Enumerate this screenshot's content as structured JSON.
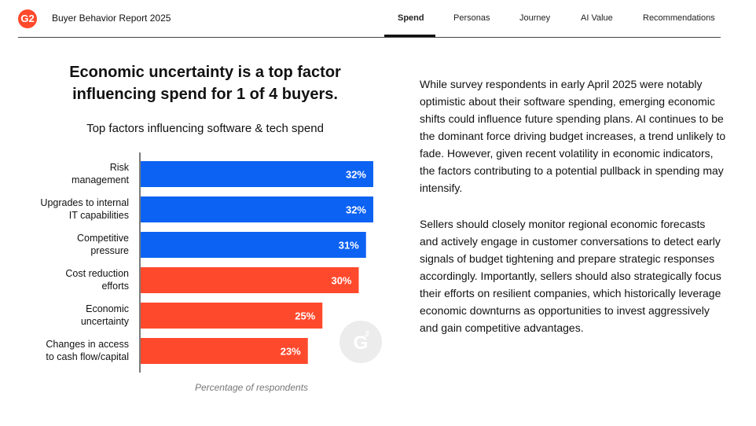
{
  "header": {
    "logo_text": "G2",
    "report_title": "Buyer Behavior Report 2025",
    "nav": [
      "Spend",
      "Personas",
      "Journey",
      "AI Value",
      "Recommendations"
    ],
    "active_nav": "Spend"
  },
  "headline": "Economic uncertainty is a top factor influencing spend for 1 of 4 buyers.",
  "colors": {
    "blue": "#0c62f2",
    "red": "#ff492c",
    "brand": "#ff492c"
  },
  "chart_data": {
    "type": "bar",
    "orientation": "horizontal",
    "title": "Top factors influencing software & tech spend",
    "xlabel": "Percentage of respondents",
    "ylabel": "",
    "xlim": [
      0,
      40
    ],
    "categories": [
      "Risk management",
      "Upgrades to internal IT capabilities",
      "Competitive pressure",
      "Cost reduction efforts",
      "Economic uncertainty",
      "Changes in access to cash flow/capital"
    ],
    "category_lines": [
      [
        "Risk",
        "management"
      ],
      [
        "Upgrades to internal",
        "IT capabilities"
      ],
      [
        "Competitive",
        "pressure"
      ],
      [
        "Cost reduction",
        "efforts"
      ],
      [
        "Economic",
        "uncertainty"
      ],
      [
        "Changes in access",
        "to cash flow/capital"
      ]
    ],
    "values": [
      32,
      32,
      31,
      30,
      25,
      23
    ],
    "value_labels": [
      "32%",
      "32%",
      "31%",
      "30%",
      "25%",
      "23%"
    ],
    "bar_colors": [
      "#0c62f2",
      "#0c62f2",
      "#0c62f2",
      "#ff492c",
      "#ff492c",
      "#ff492c"
    ],
    "grid": false,
    "legend": "none"
  },
  "paragraphs": [
    "While survey respondents in early April 2025 were notably optimistic about their software spending, emerging economic shifts could influence future spending plans. AI continues to be the dominant force driving budget increases, a trend unlikely to fade. However, given recent volatility in economic indicators, the factors contributing to a potential pullback in spending may intensify.",
    "Sellers should closely monitor regional economic forecasts and actively engage in customer conversations to detect early signals of budget tightening and prepare strategic responses accordingly. Importantly, sellers should also strategically focus their efforts on resilient companies, which historically leverage economic downturns as opportunities to invest aggressively and gain competitive advantages."
  ]
}
